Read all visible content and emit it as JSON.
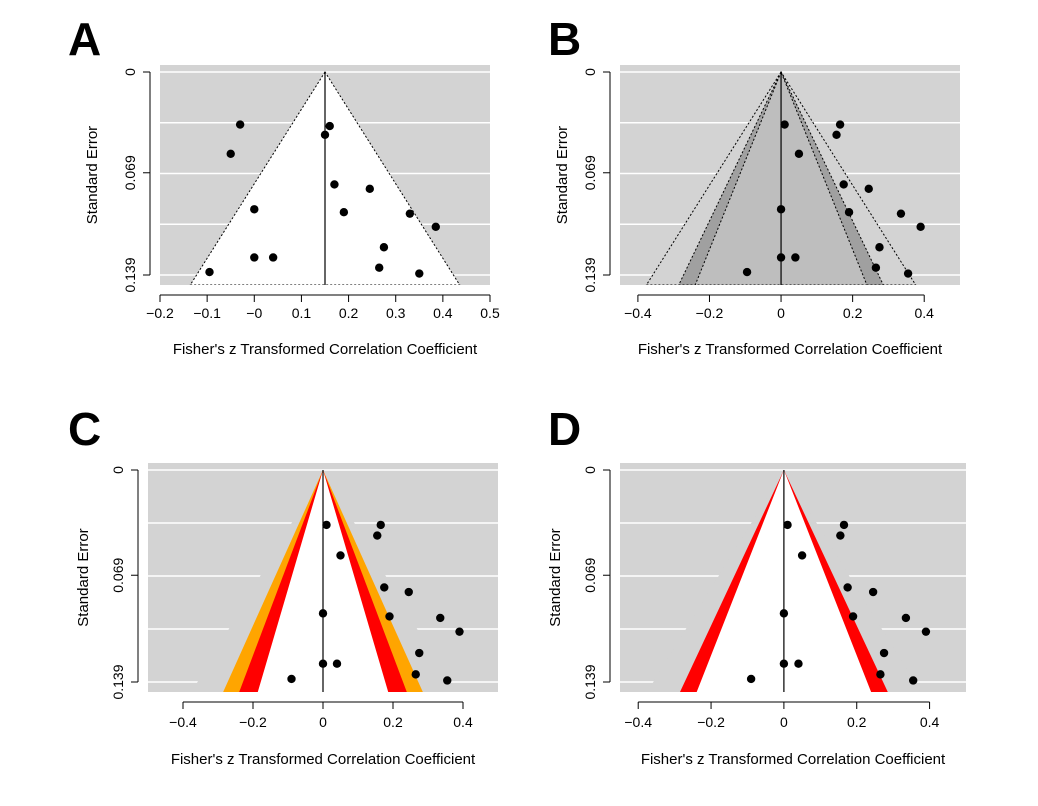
{
  "chart_data": [
    {
      "panel_label": "A",
      "type": "scatter",
      "subtype": "funnel",
      "xlabel": "Fisher's z Transformed Correlation Coefficient",
      "ylabel": "Standard Error",
      "xlim": [
        -0.2,
        0.5
      ],
      "ylim": [
        0.139,
        0
      ],
      "x_ticks": [
        -0.2,
        -0.1,
        0,
        0.1,
        0.2,
        0.3,
        0.4,
        0.5
      ],
      "x_tick_labels": [
        "−0.2",
        "−0.1",
        "−0",
        "0.1",
        "0.2",
        "0.3",
        "0.4",
        "0.5"
      ],
      "y_tick_labels": [
        "0",
        "0.069",
        "0.139"
      ],
      "y_ticks": [
        0,
        0.069,
        0.139
      ],
      "background": "#d3d3d3",
      "funnel_fill": "#ffffff",
      "funnel_center": 0.15,
      "funnel_style": "dotted",
      "center_line": 0.15,
      "contours": [],
      "points": [
        [
          -0.03,
          0.036
        ],
        [
          0.16,
          0.037
        ],
        [
          0.15,
          0.043
        ],
        [
          -0.05,
          0.056
        ],
        [
          0.17,
          0.077
        ],
        [
          0.245,
          0.08
        ],
        [
          -0.0,
          0.094
        ],
        [
          0.19,
          0.096
        ],
        [
          0.33,
          0.097
        ],
        [
          0.385,
          0.106
        ],
        [
          0.275,
          0.12
        ],
        [
          -0.0,
          0.127
        ],
        [
          0.04,
          0.127
        ],
        [
          0.265,
          0.134
        ],
        [
          -0.095,
          0.137
        ],
        [
          0.35,
          0.138
        ]
      ]
    },
    {
      "panel_label": "B",
      "type": "scatter",
      "subtype": "contour-enhanced funnel",
      "xlabel": "Fisher's z Transformed Correlation Coefficient",
      "ylabel": "Standard Error",
      "xlim": [
        -0.45,
        0.5
      ],
      "ylim": [
        0.139,
        0
      ],
      "x_ticks": [
        -0.4,
        -0.2,
        0,
        0.2,
        0.4
      ],
      "x_tick_labels": [
        "−0.4",
        "−0.2",
        "0",
        "0.2",
        "0.4"
      ],
      "y_tick_labels": [
        "0",
        "0.069",
        "0.139"
      ],
      "y_ticks": [
        0,
        0.069,
        0.139
      ],
      "background": "#d3d3d3",
      "funnel_center": 0,
      "center_line": 0,
      "contours": [
        {
          "z": 2.58,
          "color": "#d3d3d3",
          "style": "dotted"
        },
        {
          "z": 1.96,
          "color": "#a0a0a0",
          "style": "dotted"
        },
        {
          "z": 1.645,
          "color": "#bebebe",
          "style": "dotted"
        },
        {
          "z": 0,
          "color": "#ffffff"
        }
      ],
      "points": [
        [
          0.01,
          0.036
        ],
        [
          0.165,
          0.036
        ],
        [
          0.155,
          0.043
        ],
        [
          0.05,
          0.056
        ],
        [
          0.175,
          0.077
        ],
        [
          0.245,
          0.08
        ],
        [
          0.0,
          0.094
        ],
        [
          0.19,
          0.096
        ],
        [
          0.335,
          0.097
        ],
        [
          0.39,
          0.106
        ],
        [
          0.275,
          0.12
        ],
        [
          0.0,
          0.127
        ],
        [
          0.04,
          0.127
        ],
        [
          0.265,
          0.134
        ],
        [
          -0.095,
          0.137
        ],
        [
          0.355,
          0.138
        ]
      ]
    },
    {
      "panel_label": "C",
      "type": "scatter",
      "subtype": "contour-enhanced funnel",
      "xlabel": "Fisher's z Transformed Correlation Coefficient",
      "ylabel": "Standard Error",
      "xlim": [
        -0.5,
        0.5
      ],
      "ylim": [
        0.139,
        0
      ],
      "x_ticks": [
        -0.4,
        -0.2,
        0,
        0.2,
        0.4
      ],
      "x_tick_labels": [
        "−0.4",
        "−0.2",
        "0",
        "0.2",
        "0.4"
      ],
      "y_tick_labels": [
        "0",
        "0.069",
        "0.139"
      ],
      "y_ticks": [
        0,
        0.069,
        0.139
      ],
      "background": "#d3d3d3",
      "funnel_center": 0,
      "center_line": 0,
      "contours": [
        {
          "z": 2.58,
          "color": "#d3d3d3"
        },
        {
          "z": 1.96,
          "color": "#ffa500"
        },
        {
          "z": 1.645,
          "color": "#ff0000"
        },
        {
          "z": 1.28,
          "color": "#ffffff"
        }
      ],
      "points": [
        [
          0.01,
          0.036
        ],
        [
          0.165,
          0.036
        ],
        [
          0.155,
          0.043
        ],
        [
          0.05,
          0.056
        ],
        [
          0.175,
          0.077
        ],
        [
          0.245,
          0.08
        ],
        [
          0.0,
          0.094
        ],
        [
          0.19,
          0.096
        ],
        [
          0.335,
          0.097
        ],
        [
          0.39,
          0.106
        ],
        [
          0.275,
          0.12
        ],
        [
          0.0,
          0.127
        ],
        [
          0.04,
          0.127
        ],
        [
          0.265,
          0.134
        ],
        [
          -0.09,
          0.137
        ],
        [
          0.355,
          0.138
        ]
      ]
    },
    {
      "panel_label": "D",
      "type": "scatter",
      "subtype": "contour-enhanced funnel",
      "xlabel": "Fisher's z Transformed Correlation Coefficient",
      "ylabel": "Standard Error",
      "xlim": [
        -0.45,
        0.5
      ],
      "ylim": [
        0.139,
        0
      ],
      "x_ticks": [
        -0.4,
        -0.2,
        0,
        0.2,
        0.4
      ],
      "x_tick_labels": [
        "−0.4",
        "−0.2",
        "0",
        "0.2",
        "0.4"
      ],
      "y_tick_labels": [
        "0",
        "0.069",
        "0.139"
      ],
      "y_ticks": [
        0,
        0.069,
        0.139
      ],
      "background": "#d3d3d3",
      "funnel_center": 0,
      "center_line": 0,
      "contours": [
        {
          "z": 2.58,
          "color": "#d3d3d3"
        },
        {
          "z": 1.96,
          "color": "#ff0000"
        },
        {
          "z": 1.645,
          "color": "#ffffff"
        }
      ],
      "points": [
        [
          0.01,
          0.036
        ],
        [
          0.165,
          0.036
        ],
        [
          0.155,
          0.043
        ],
        [
          0.05,
          0.056
        ],
        [
          0.175,
          0.077
        ],
        [
          0.245,
          0.08
        ],
        [
          0.0,
          0.094
        ],
        [
          0.19,
          0.096
        ],
        [
          0.335,
          0.097
        ],
        [
          0.39,
          0.106
        ],
        [
          0.275,
          0.12
        ],
        [
          0.0,
          0.127
        ],
        [
          0.04,
          0.127
        ],
        [
          0.265,
          0.134
        ],
        [
          -0.09,
          0.137
        ],
        [
          0.355,
          0.138
        ]
      ]
    }
  ]
}
